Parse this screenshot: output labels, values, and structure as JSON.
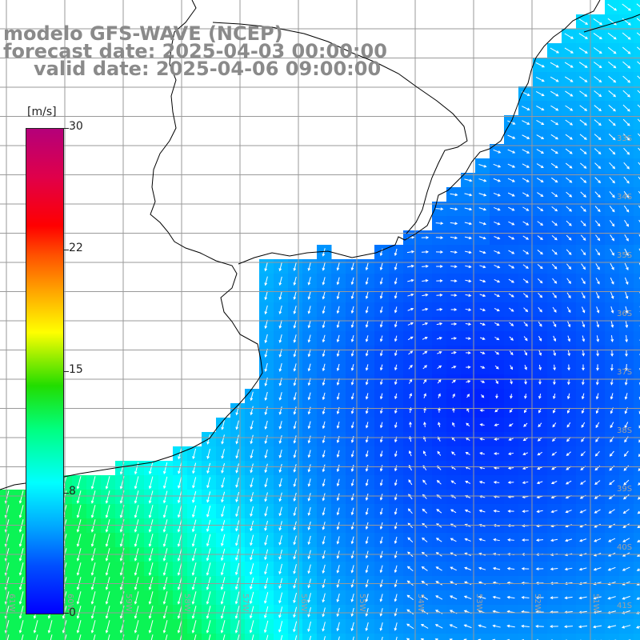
{
  "title": {
    "line1": "modelo GFS-WAVE (NCEP)",
    "line2": "forecast date: 2025-04-03 00:00:00",
    "line3": "valid date: 2025-04-06 09:00:00"
  },
  "colorbar": {
    "unit_label": "[m/s]",
    "tick_labels": [
      "30",
      "22",
      "15",
      "8",
      "0"
    ],
    "tick_values": [
      30,
      22,
      15,
      8,
      0
    ]
  },
  "grid": {
    "lat_labels": [
      "33S",
      "34S",
      "35S",
      "36S",
      "37S",
      "38S",
      "39S",
      "40S",
      "41S"
    ],
    "lon_labels": [
      "61W",
      "60W",
      "59W",
      "58W",
      "57W",
      "56W",
      "55W",
      "54W",
      "53W",
      "52W",
      "51W"
    ],
    "lat_values": [
      33,
      34,
      35,
      36,
      37,
      38,
      39,
      40,
      41
    ],
    "lon_values": [
      61,
      60,
      59,
      58,
      57,
      56,
      55,
      54,
      53,
      52,
      51
    ]
  },
  "colors": {
    "land": "#ffffff",
    "coastline": "#000000",
    "gridline": "#9a9a9a",
    "arrows": "#ffffff",
    "title_text": "#8a8a8a"
  }
}
